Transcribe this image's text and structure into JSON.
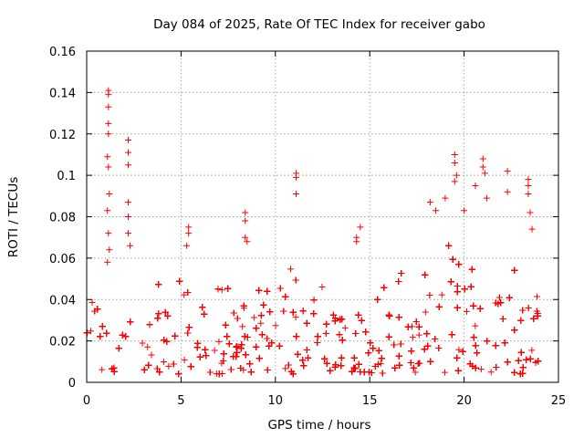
{
  "chart_data": {
    "type": "scatter",
    "title": "Day 084 of 2025, Rate Of TEC Index for receiver gabo",
    "xlabel": "GPS time / hours",
    "ylabel": "ROTI / TECUs",
    "xlim": [
      0,
      25
    ],
    "ylim": [
      0,
      0.16
    ],
    "x_ticks": [
      0,
      5,
      10,
      15,
      20,
      25
    ],
    "x_tick_labels": [
      "0",
      "5",
      "10",
      "15",
      "20",
      "25"
    ],
    "y_ticks": [
      0,
      0.02,
      0.04,
      0.06,
      0.08,
      0.1,
      0.12,
      0.14,
      0.16
    ],
    "y_tick_labels": [
      "0",
      "0.02",
      "0.04",
      "0.06",
      "0.08",
      "0.1",
      "0.12",
      "0.14",
      "0.16"
    ],
    "grid": true,
    "marker": "+",
    "color": "#ff0000",
    "series": [
      {
        "name": "ROTI",
        "notable_points": [
          {
            "x": 1.15,
            "y": 0.141
          },
          {
            "x": 1.15,
            "y": 0.139
          },
          {
            "x": 1.15,
            "y": 0.133
          },
          {
            "x": 1.15,
            "y": 0.125
          },
          {
            "x": 1.15,
            "y": 0.12
          },
          {
            "x": 1.1,
            "y": 0.109
          },
          {
            "x": 1.15,
            "y": 0.104
          },
          {
            "x": 1.2,
            "y": 0.091
          },
          {
            "x": 1.1,
            "y": 0.083
          },
          {
            "x": 1.15,
            "y": 0.072
          },
          {
            "x": 1.2,
            "y": 0.064
          },
          {
            "x": 1.1,
            "y": 0.058
          },
          {
            "x": 2.2,
            "y": 0.117
          },
          {
            "x": 2.2,
            "y": 0.111
          },
          {
            "x": 2.2,
            "y": 0.105
          },
          {
            "x": 2.2,
            "y": 0.087
          },
          {
            "x": 2.2,
            "y": 0.08
          },
          {
            "x": 2.2,
            "y": 0.072
          },
          {
            "x": 2.3,
            "y": 0.066
          },
          {
            "x": 5.4,
            "y": 0.075
          },
          {
            "x": 5.4,
            "y": 0.072
          },
          {
            "x": 5.3,
            "y": 0.066
          },
          {
            "x": 8.4,
            "y": 0.082
          },
          {
            "x": 8.4,
            "y": 0.078
          },
          {
            "x": 8.4,
            "y": 0.07
          },
          {
            "x": 8.5,
            "y": 0.068
          },
          {
            "x": 11.1,
            "y": 0.101
          },
          {
            "x": 11.1,
            "y": 0.099
          },
          {
            "x": 11.1,
            "y": 0.091
          },
          {
            "x": 14.3,
            "y": 0.07
          },
          {
            "x": 14.3,
            "y": 0.068
          },
          {
            "x": 14.5,
            "y": 0.075
          },
          {
            "x": 18.2,
            "y": 0.087
          },
          {
            "x": 18.5,
            "y": 0.083
          },
          {
            "x": 19.0,
            "y": 0.089
          },
          {
            "x": 19.5,
            "y": 0.11
          },
          {
            "x": 19.5,
            "y": 0.106
          },
          {
            "x": 19.6,
            "y": 0.1
          },
          {
            "x": 19.5,
            "y": 0.097
          },
          {
            "x": 20.0,
            "y": 0.083
          },
          {
            "x": 20.6,
            "y": 0.095
          },
          {
            "x": 21.0,
            "y": 0.108
          },
          {
            "x": 21.0,
            "y": 0.104
          },
          {
            "x": 21.1,
            "y": 0.101
          },
          {
            "x": 21.2,
            "y": 0.089
          },
          {
            "x": 22.3,
            "y": 0.102
          },
          {
            "x": 22.3,
            "y": 0.092
          },
          {
            "x": 23.4,
            "y": 0.098
          },
          {
            "x": 23.4,
            "y": 0.095
          },
          {
            "x": 23.4,
            "y": 0.091
          },
          {
            "x": 23.5,
            "y": 0.082
          },
          {
            "x": 23.6,
            "y": 0.074
          }
        ],
        "baseline_envelope": {
          "hours": [
            0,
            1,
            2,
            3,
            4,
            5,
            6,
            7,
            8,
            9,
            10,
            11,
            12,
            13,
            14,
            15,
            16,
            17,
            18,
            19,
            20,
            21,
            22,
            23,
            24
          ],
          "min": [
            0.005,
            0.005,
            0.005,
            0.004,
            0.004,
            0.004,
            0.005,
            0.004,
            0.005,
            0.005,
            0.004,
            0.004,
            0.004,
            0.004,
            0.004,
            0.004,
            0.004,
            0.005,
            0.004,
            0.004,
            0.004,
            0.004,
            0.005,
            0.004,
            0.004
          ],
          "dense_max": [
            0.032,
            0.038,
            0.042,
            0.035,
            0.036,
            0.038,
            0.036,
            0.035,
            0.04,
            0.035,
            0.034,
            0.04,
            0.035,
            0.032,
            0.03,
            0.03,
            0.034,
            0.036,
            0.042,
            0.045,
            0.048,
            0.045,
            0.042,
            0.04,
            0.036
          ],
          "spike_max": [
            0.04,
            0.047,
            0.056,
            0.048,
            0.055,
            0.05,
            0.048,
            0.047,
            0.058,
            0.048,
            0.047,
            0.06,
            0.05,
            0.045,
            0.042,
            0.042,
            0.05,
            0.055,
            0.065,
            0.075,
            0.07,
            0.068,
            0.062,
            0.06,
            0.05
          ]
        }
      }
    ]
  }
}
